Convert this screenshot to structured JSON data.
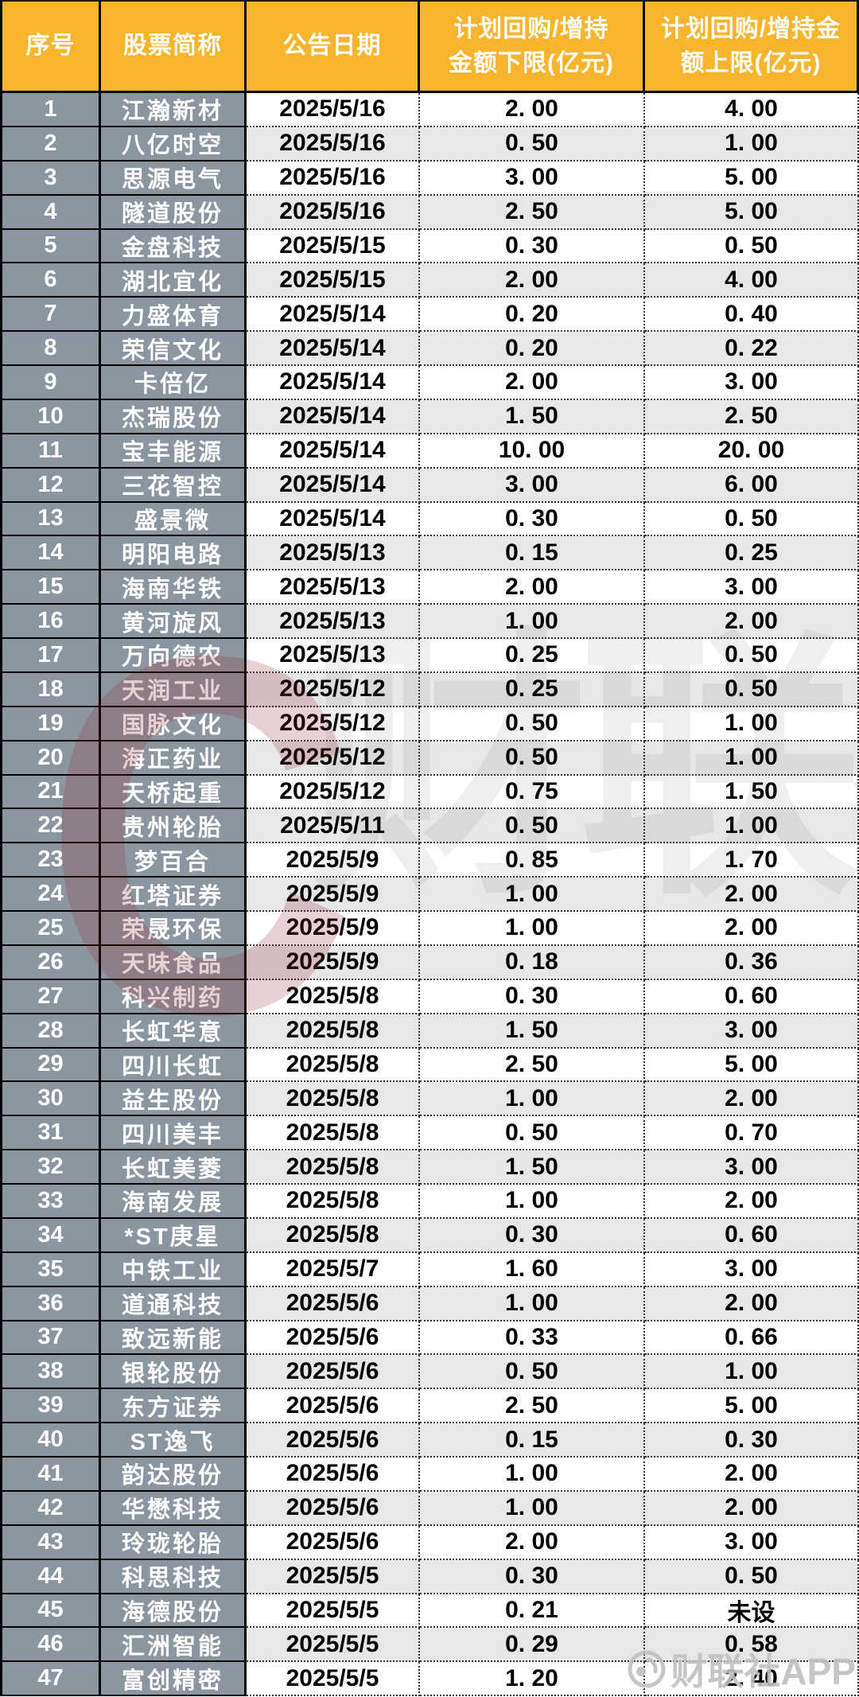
{
  "chart_data": {
    "type": "table",
    "columns": [
      "序号",
      "股票简称",
      "公告日期",
      "计划回购/增持\n金额下限(亿元)",
      "计划回购/增持金\n额上限(亿元)"
    ],
    "rows": [
      [
        "1",
        "江瀚新材",
        "2025/5/16",
        "2. 00",
        "4. 00"
      ],
      [
        "2",
        "八亿时空",
        "2025/5/16",
        "0. 50",
        "1. 00"
      ],
      [
        "3",
        "思源电气",
        "2025/5/16",
        "3. 00",
        "5. 00"
      ],
      [
        "4",
        "隧道股份",
        "2025/5/16",
        "2. 50",
        "5. 00"
      ],
      [
        "5",
        "金盘科技",
        "2025/5/15",
        "0. 30",
        "0. 50"
      ],
      [
        "6",
        "湖北宜化",
        "2025/5/15",
        "2. 00",
        "4. 00"
      ],
      [
        "7",
        "力盛体育",
        "2025/5/14",
        "0. 20",
        "0. 40"
      ],
      [
        "8",
        "荣信文化",
        "2025/5/14",
        "0. 20",
        "0. 22"
      ],
      [
        "9",
        "卡倍亿",
        "2025/5/14",
        "2. 00",
        "3. 00"
      ],
      [
        "10",
        "杰瑞股份",
        "2025/5/14",
        "1. 50",
        "2. 50"
      ],
      [
        "11",
        "宝丰能源",
        "2025/5/14",
        "10. 00",
        "20. 00"
      ],
      [
        "12",
        "三花智控",
        "2025/5/14",
        "3. 00",
        "6. 00"
      ],
      [
        "13",
        "盛景微",
        "2025/5/14",
        "0. 30",
        "0. 50"
      ],
      [
        "14",
        "明阳电路",
        "2025/5/13",
        "0. 15",
        "0. 25"
      ],
      [
        "15",
        "海南华铁",
        "2025/5/13",
        "2. 00",
        "3. 00"
      ],
      [
        "16",
        "黄河旋风",
        "2025/5/13",
        "1. 00",
        "2. 00"
      ],
      [
        "17",
        "万向德农",
        "2025/5/13",
        "0. 25",
        "0. 50"
      ],
      [
        "18",
        "天润工业",
        "2025/5/12",
        "0. 25",
        "0. 50"
      ],
      [
        "19",
        "国脉文化",
        "2025/5/12",
        "0. 50",
        "1. 00"
      ],
      [
        "20",
        "海正药业",
        "2025/5/12",
        "0. 50",
        "1. 00"
      ],
      [
        "21",
        "天桥起重",
        "2025/5/12",
        "0. 75",
        "1. 50"
      ],
      [
        "22",
        "贵州轮胎",
        "2025/5/11",
        "0. 50",
        "1. 00"
      ],
      [
        "23",
        "梦百合",
        "2025/5/9",
        "0. 85",
        "1. 70"
      ],
      [
        "24",
        "红塔证券",
        "2025/5/9",
        "1. 00",
        "2. 00"
      ],
      [
        "25",
        "荣晟环保",
        "2025/5/9",
        "1. 00",
        "2. 00"
      ],
      [
        "26",
        "天味食品",
        "2025/5/9",
        "0. 18",
        "0. 36"
      ],
      [
        "27",
        "科兴制药",
        "2025/5/8",
        "0. 30",
        "0. 60"
      ],
      [
        "28",
        "长虹华意",
        "2025/5/8",
        "1. 50",
        "3. 00"
      ],
      [
        "29",
        "四川长虹",
        "2025/5/8",
        "2. 50",
        "5. 00"
      ],
      [
        "30",
        "益生股份",
        "2025/5/8",
        "1. 00",
        "2. 00"
      ],
      [
        "31",
        "四川美丰",
        "2025/5/8",
        "0. 50",
        "0. 70"
      ],
      [
        "32",
        "长虹美菱",
        "2025/5/8",
        "1. 50",
        "3. 00"
      ],
      [
        "33",
        "海南发展",
        "2025/5/8",
        "1. 00",
        "2. 00"
      ],
      [
        "34",
        "*ST庚星",
        "2025/5/8",
        "0. 30",
        "0. 60"
      ],
      [
        "35",
        "中铁工业",
        "2025/5/7",
        "1. 60",
        "3. 00"
      ],
      [
        "36",
        "道通科技",
        "2025/5/6",
        "1. 00",
        "2. 00"
      ],
      [
        "37",
        "致远新能",
        "2025/5/6",
        "0. 33",
        "0. 66"
      ],
      [
        "38",
        "银轮股份",
        "2025/5/6",
        "0. 50",
        "1. 00"
      ],
      [
        "39",
        "东方证券",
        "2025/5/6",
        "2. 50",
        "5. 00"
      ],
      [
        "40",
        "ST逸飞",
        "2025/5/6",
        "0. 15",
        "0. 30"
      ],
      [
        "41",
        "韵达股份",
        "2025/5/6",
        "1. 00",
        "2. 00"
      ],
      [
        "42",
        "华懋科技",
        "2025/5/6",
        "1. 00",
        "2. 00"
      ],
      [
        "43",
        "玲珑轮胎",
        "2025/5/6",
        "2. 00",
        "3. 00"
      ],
      [
        "44",
        "科思科技",
        "2025/5/5",
        "0. 30",
        "0. 50"
      ],
      [
        "45",
        "海德股份",
        "2025/5/5",
        "0. 21",
        "未设"
      ],
      [
        "46",
        "汇洲智能",
        "2025/5/5",
        "0. 29",
        "0. 58"
      ],
      [
        "47",
        "富创精密",
        "2025/5/5",
        "1. 20",
        "2. 40"
      ]
    ]
  },
  "watermark": {
    "center_letter": "C",
    "center_text": "财联社",
    "corner_text": "财联社APP"
  },
  "colors": {
    "header_bg": "#F8B42D",
    "index_col_bg": "#8C96A0",
    "stripe_bg": "#E7E7E7",
    "watermark_red": "#8C1924"
  }
}
